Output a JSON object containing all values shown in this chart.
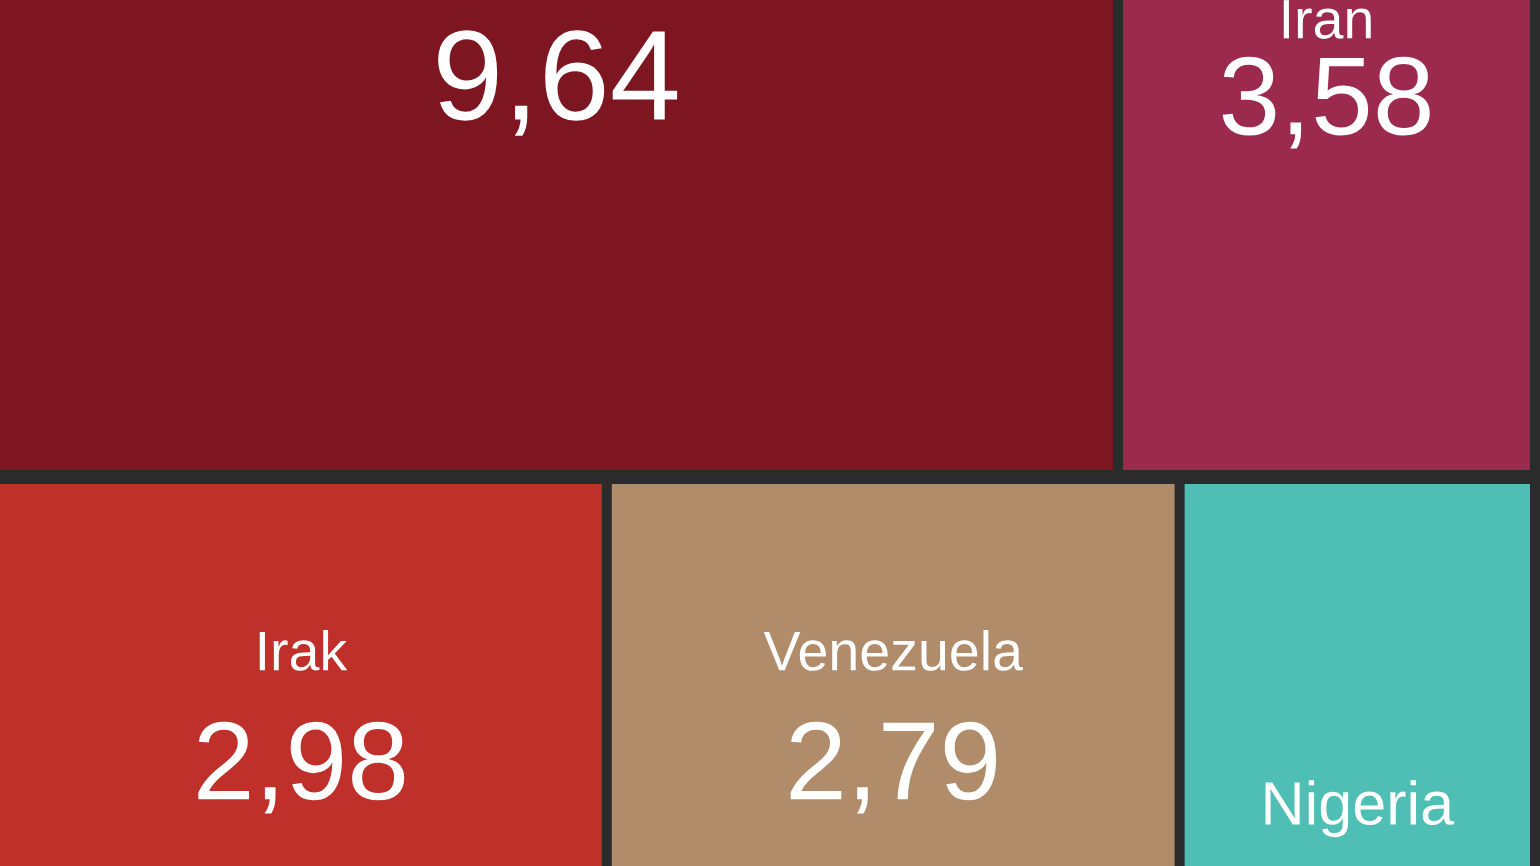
{
  "chart_data": {
    "type": "other",
    "categories": [
      null,
      "Iran",
      "Irak",
      "Venezuela",
      "Nigeria"
    ],
    "values": [
      9.64,
      3.58,
      2.98,
      2.79,
      null
    ],
    "value_labels": [
      "9,64",
      "3,58",
      "2,98",
      "2,79",
      null
    ],
    "colors": [
      "#7d1620",
      "#9b2a4e",
      "#c0302a",
      "#b08c6a",
      "#4fbfb5"
    ]
  }
}
